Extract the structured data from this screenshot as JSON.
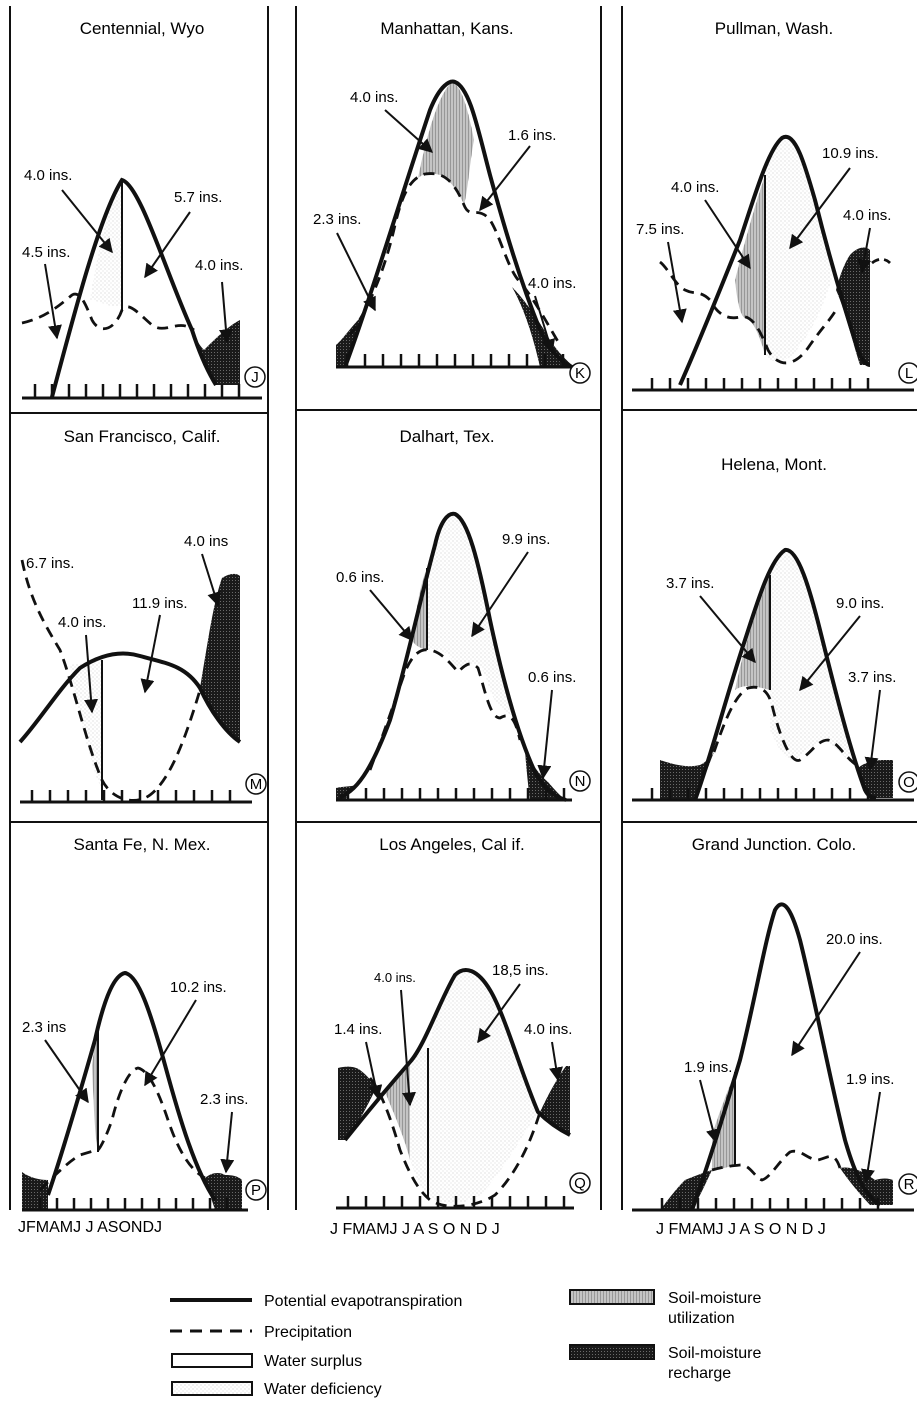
{
  "panels": [
    {
      "id": "J",
      "title": "Centennial,  Wyo",
      "annotations": [
        "4.0 ins.",
        "5.7 ins.",
        "4.5 ins.",
        "4.0 ins."
      ]
    },
    {
      "id": "K",
      "title": "Manhattan,  Kans.",
      "annotations": [
        "4.0 ins.",
        "1.6 ins.",
        "2.3 ins.",
        "4.0 ins."
      ]
    },
    {
      "id": "L",
      "title": "Pullman, Wash.",
      "annotations": [
        "10.9 ins.",
        "4.0 ins.",
        "4.0 ins.",
        "7.5 ins."
      ]
    },
    {
      "id": "M",
      "title": "San  Francisco,  Calif.",
      "annotations": [
        "4.0 ins",
        "6.7 ins.",
        "11.9 ins.",
        "4.0 ins."
      ]
    },
    {
      "id": "N",
      "title": "Dalhart,  Tex.",
      "annotations": [
        "9.9 ins.",
        "0.6 ins.",
        "0.6 ins."
      ]
    },
    {
      "id": "O",
      "title": "Helena,  Mont.",
      "annotations": [
        "3.7 ins.",
        "9.0 ins.",
        "3.7 ins."
      ]
    },
    {
      "id": "P",
      "title": "Santa Fe, N. Mex.",
      "annotations": [
        "10.2 ins.",
        "2.3 ins",
        "2.3 ins."
      ]
    },
    {
      "id": "Q",
      "title": "Los Angeles, Cal if.",
      "annotations": [
        "4.0  ins.",
        "18,5 ins.",
        "1.4 ins.",
        "4.0 ins."
      ]
    },
    {
      "id": "R",
      "title": "Grand  Junction.  Colo.",
      "annotations": [
        "20.0 ins.",
        "1.9 ins.",
        "1.9 ins."
      ]
    }
  ],
  "month_labels": {
    "col1": "JFMAMJ J ASONDJ",
    "col2": "J FMAMJ J A S O N D J",
    "col3": "J  FMAMJ J A S O N D J"
  },
  "legend": {
    "pet": "Potential evapotranspiration",
    "precip": "Precipitation",
    "surplus": "Water surplus",
    "deficiency": "Water deficiency",
    "utilization": [
      "Soil-moisture",
      "utilization"
    ],
    "recharge": [
      "Soil-moisture",
      "recharge"
    ]
  }
}
